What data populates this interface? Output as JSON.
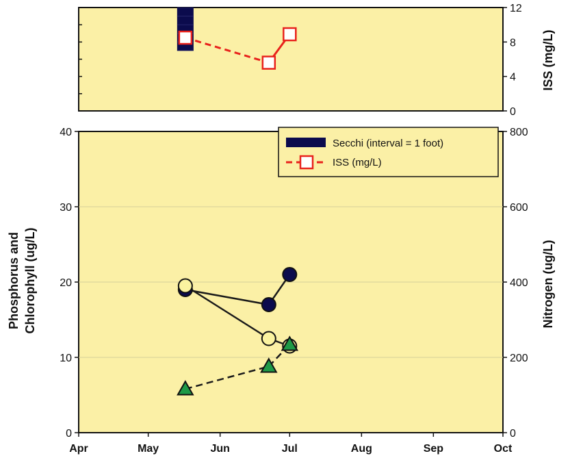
{
  "chart_data": {
    "type": "line",
    "x_months": [
      "Apr",
      "May",
      "Jun",
      "Jul",
      "Aug",
      "Sep",
      "Oct"
    ],
    "top_panel": {
      "ylabel": "ISS (mg/L)",
      "y_ticks": [
        0,
        4,
        8,
        12
      ],
      "ylim": [
        0,
        12
      ],
      "secchi": {
        "name": "Secchi (interval = 1 foot)",
        "color": "#0b0b4d",
        "points": [
          {
            "x": "2008-05-17",
            "y_ticks": [
              12,
              11,
              10,
              9,
              8,
              7
            ]
          }
        ]
      },
      "iss": {
        "name": "ISS (mg/L)",
        "color": "#e8221c",
        "points": [
          {
            "x": "2008-05-17",
            "y": 8.5
          },
          {
            "x": "2008-06-22",
            "y": 5.6
          },
          {
            "x": "2008-07-01",
            "y": 8.9
          }
        ]
      }
    },
    "bottom_panel": {
      "ylabel_left_line1": "Phosphorus and",
      "ylabel_left_line2": "Chlorophyll (ug/L)",
      "ylabel_right": "Nitrogen (ug/L)",
      "y_left_ticks": [
        0,
        10,
        20,
        30,
        40
      ],
      "y_left_lim": [
        0,
        40
      ],
      "y_right_ticks": [
        0,
        200,
        400,
        600,
        800
      ],
      "y_right_lim": [
        0,
        800
      ],
      "grid": true,
      "series": [
        {
          "marker": "circle",
          "color": "#0b0b4d",
          "points": [
            {
              "x": "2008-05-17",
              "y": 19.0
            },
            {
              "x": "2008-06-22",
              "y": 17.0
            },
            {
              "x": "2008-07-01",
              "y": 21.0
            }
          ]
        },
        {
          "marker": "circle",
          "color": "#fbf3a0",
          "points": [
            {
              "x": "2008-05-17",
              "y": 19.5
            },
            {
              "x": "2008-06-22",
              "y": 12.5
            },
            {
              "x": "2008-07-01",
              "y": 11.5
            }
          ]
        },
        {
          "marker": "triangle",
          "color": "#1e9a47",
          "points": [
            {
              "x": "2008-05-17",
              "y": 5.8
            },
            {
              "x": "2008-06-22",
              "y": 8.8
            },
            {
              "x": "2008-07-01",
              "y": 11.7
            }
          ]
        }
      ],
      "legend": {
        "placement": "top-right",
        "items": [
          "Secchi (interval = 1 foot)",
          "ISS (mg/L)"
        ]
      }
    },
    "colors": {
      "plot_background": "#fbf0a6",
      "grid": "#d6cf9a"
    }
  }
}
